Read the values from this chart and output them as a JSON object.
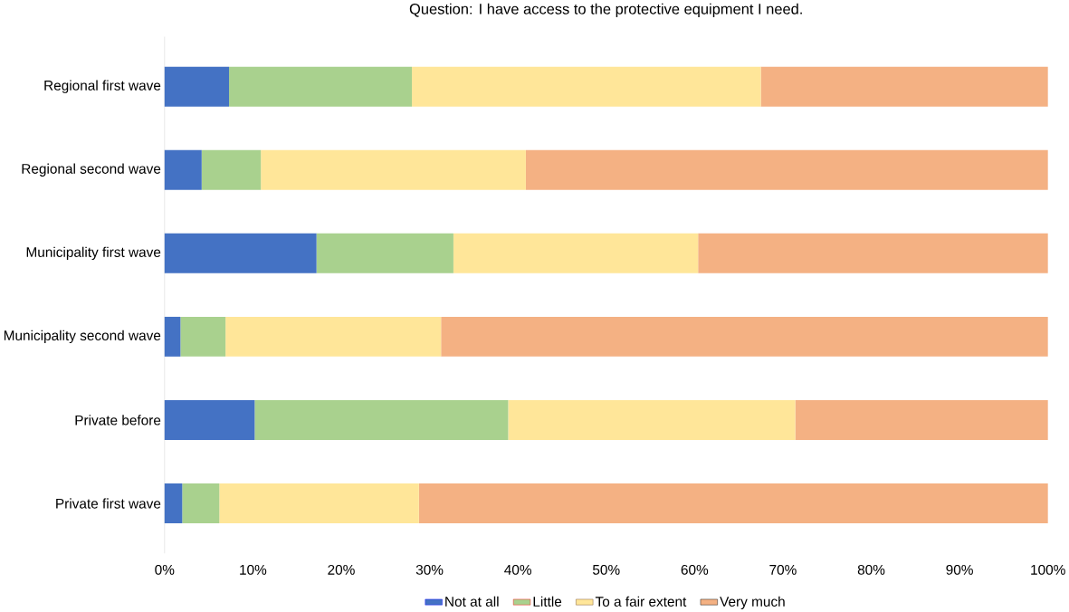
{
  "chart_data": {
    "type": "bar",
    "orientation": "horizontal",
    "stacked": true,
    "title": "Question: I have access to the protective equipment I need.",
    "categories": [
      "Regional first wave",
      "Regional second wave",
      "Municipality first wave",
      "Municipality second wave",
      "Private before",
      "Private first wave"
    ],
    "series": [
      {
        "name": "Not at all",
        "color": "#4472c4",
        "values": [
          7.3,
          4.2,
          17.2,
          1.8,
          10.2,
          2.0
        ]
      },
      {
        "name": "Little",
        "color": "#a9d18e",
        "values": [
          20.7,
          6.7,
          15.5,
          5.1,
          28.7,
          4.2
        ]
      },
      {
        "name": "To a fair extent",
        "color": "#ffe699",
        "values": [
          39.5,
          30.0,
          27.7,
          24.4,
          32.5,
          22.6
        ]
      },
      {
        "name": "Very much",
        "color": "#f4b183",
        "values": [
          32.5,
          59.1,
          39.6,
          68.7,
          28.6,
          71.2
        ]
      }
    ],
    "xlim": [
      0,
      100
    ],
    "xticks": [
      {
        "value": 0,
        "label": "0%"
      },
      {
        "value": 10,
        "label": "10%"
      },
      {
        "value": 20,
        "label": "20%"
      },
      {
        "value": 30,
        "label": "30%"
      },
      {
        "value": 40,
        "label": "40%"
      },
      {
        "value": 50,
        "label": "50%"
      },
      {
        "value": 60,
        "label": "60%"
      },
      {
        "value": 70,
        "label": "70%"
      },
      {
        "value": 80,
        "label": "80%"
      },
      {
        "value": 90,
        "label": "90%"
      },
      {
        "value": 100,
        "label": "100%"
      }
    ],
    "grid": false,
    "legend": "bottom"
  }
}
